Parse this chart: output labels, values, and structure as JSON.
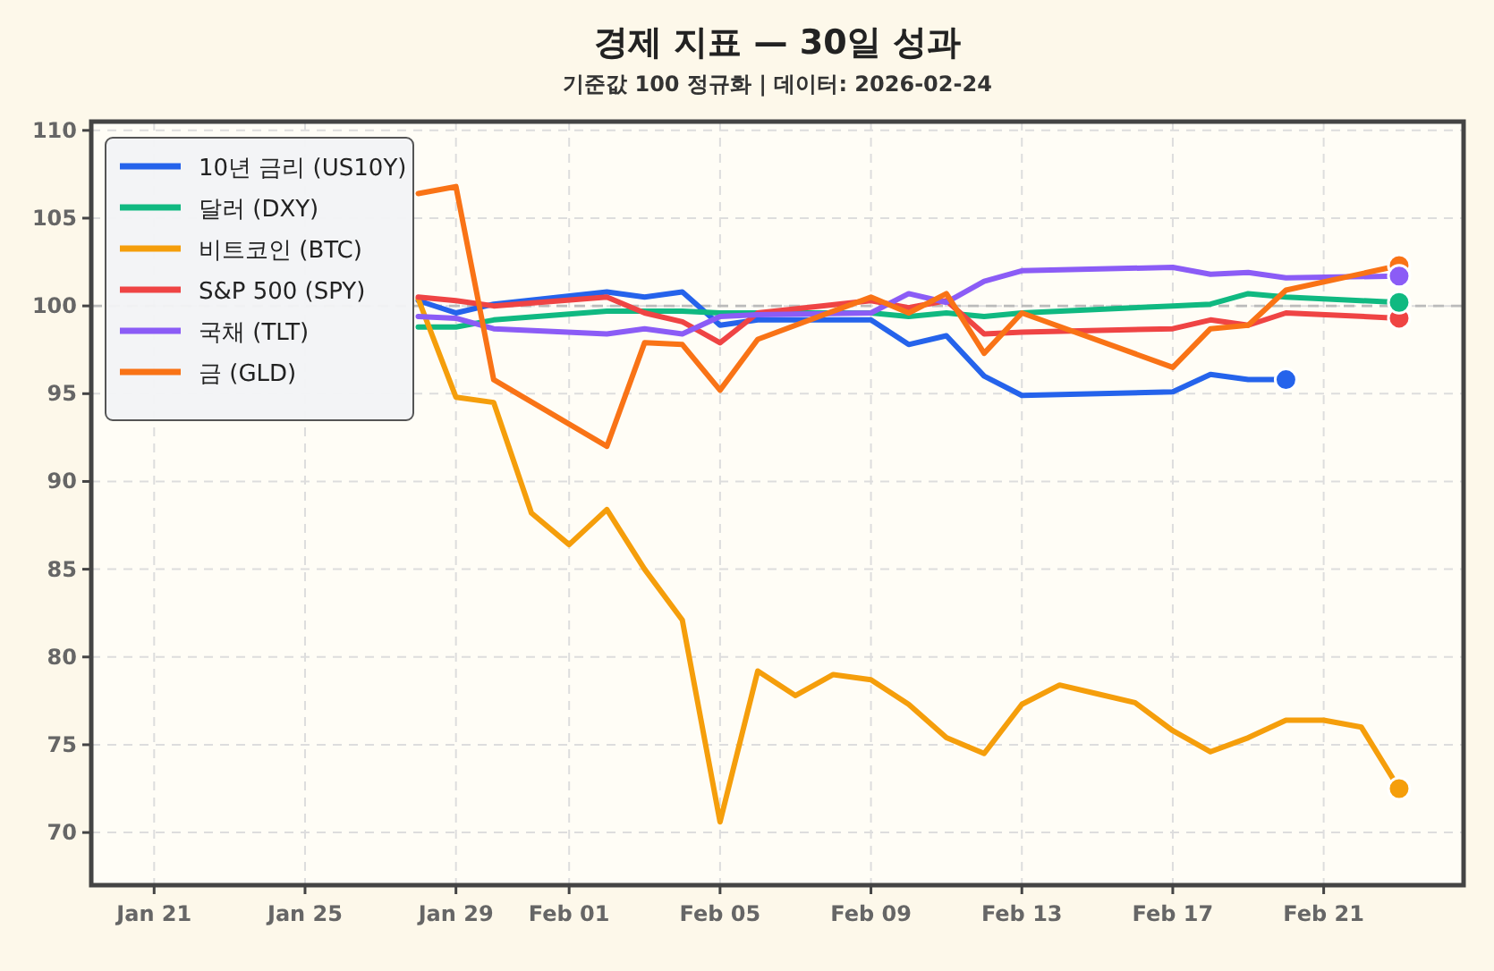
{
  "chart_data": {
    "type": "line",
    "title": "경제 지표 — 30일 성과",
    "subtitle": "기준값 100 정규화 | 데이터: 2026-02-24",
    "xlim": [
      "2026-01-19T08:00",
      "2026-02-24T17:00"
    ],
    "ylim": [
      67,
      110.5
    ],
    "xticks": [
      {
        "value": "2026-01-21",
        "label": "Jan 21"
      },
      {
        "value": "2026-01-25",
        "label": "Jan 25"
      },
      {
        "value": "2026-01-29",
        "label": "Jan 29"
      },
      {
        "value": "2026-02-01",
        "label": "Feb 01"
      },
      {
        "value": "2026-02-05",
        "label": "Feb 05"
      },
      {
        "value": "2026-02-09",
        "label": "Feb 09"
      },
      {
        "value": "2026-02-13",
        "label": "Feb 13"
      },
      {
        "value": "2026-02-17",
        "label": "Feb 17"
      },
      {
        "value": "2026-02-21",
        "label": "Feb 21"
      }
    ],
    "yticks": [
      70,
      75,
      80,
      85,
      90,
      95,
      100,
      105,
      110
    ],
    "grid": true,
    "legend": "top left",
    "line_style": "solid",
    "ref_lines": [
      {
        "axis": "y",
        "value": 100,
        "color": "#bbbbbb",
        "line_style": "dashed"
      }
    ],
    "series": [
      {
        "name": "10년 금리 (US10Y)",
        "color": "#2563eb",
        "x": [
          "2026-01-28",
          "2026-01-29",
          "2026-01-30",
          "2026-02-02",
          "2026-02-03",
          "2026-02-04",
          "2026-02-05",
          "2026-02-06",
          "2026-02-09",
          "2026-02-10",
          "2026-02-11",
          "2026-02-12",
          "2026-02-13",
          "2026-02-17",
          "2026-02-18",
          "2026-02-19",
          "2026-02-20"
        ],
        "values": [
          100.3,
          99.6,
          100.1,
          100.8,
          100.5,
          100.8,
          98.9,
          99.2,
          99.2,
          97.8,
          98.3,
          96.0,
          94.9,
          95.1,
          96.1,
          95.8,
          95.8
        ]
      },
      {
        "name": "달러 (DXY)",
        "color": "#10b981",
        "x": [
          "2026-01-28",
          "2026-01-29",
          "2026-01-30",
          "2026-02-02",
          "2026-02-03",
          "2026-02-04",
          "2026-02-05",
          "2026-02-06",
          "2026-02-09",
          "2026-02-10",
          "2026-02-11",
          "2026-02-12",
          "2026-02-13",
          "2026-02-17",
          "2026-02-18",
          "2026-02-19",
          "2026-02-20",
          "2026-02-23"
        ],
        "values": [
          98.8,
          98.8,
          99.2,
          99.7,
          99.7,
          99.7,
          99.6,
          99.6,
          99.6,
          99.4,
          99.6,
          99.4,
          99.6,
          100.0,
          100.1,
          100.7,
          100.5,
          100.2
        ]
      },
      {
        "name": "비트코인 (BTC)",
        "color": "#f59e0b",
        "x": [
          "2026-01-28",
          "2026-01-29",
          "2026-01-30",
          "2026-01-31",
          "2026-02-01",
          "2026-02-02",
          "2026-02-03",
          "2026-02-04",
          "2026-02-05",
          "2026-02-06",
          "2026-02-07",
          "2026-02-08",
          "2026-02-09",
          "2026-02-10",
          "2026-02-11",
          "2026-02-12",
          "2026-02-13",
          "2026-02-14",
          "2026-02-15",
          "2026-02-16",
          "2026-02-17",
          "2026-02-18",
          "2026-02-19",
          "2026-02-20",
          "2026-02-21",
          "2026-02-22",
          "2026-02-23"
        ],
        "values": [
          100.4,
          94.8,
          94.5,
          88.2,
          86.4,
          88.4,
          85.0,
          82.1,
          70.6,
          79.2,
          77.8,
          79.0,
          78.7,
          77.3,
          75.4,
          74.5,
          77.3,
          78.4,
          77.9,
          77.4,
          75.8,
          74.6,
          75.4,
          76.4,
          76.4,
          76.0,
          72.5
        ]
      },
      {
        "name": "S&P 500 (SPY)",
        "color": "#ef4444",
        "x": [
          "2026-01-28",
          "2026-01-29",
          "2026-01-30",
          "2026-02-02",
          "2026-02-03",
          "2026-02-04",
          "2026-02-05",
          "2026-02-06",
          "2026-02-09",
          "2026-02-10",
          "2026-02-11",
          "2026-02-12",
          "2026-02-13",
          "2026-02-17",
          "2026-02-18",
          "2026-02-19",
          "2026-02-20",
          "2026-02-23"
        ],
        "values": [
          100.5,
          100.3,
          100.0,
          100.5,
          99.6,
          99.1,
          97.9,
          99.6,
          100.3,
          99.9,
          100.3,
          98.4,
          98.5,
          98.7,
          99.2,
          98.9,
          99.6,
          99.3
        ]
      },
      {
        "name": "국채 (TLT)",
        "color": "#8b5cf6",
        "x": [
          "2026-01-28",
          "2026-01-29",
          "2026-01-30",
          "2026-02-02",
          "2026-02-03",
          "2026-02-04",
          "2026-02-05",
          "2026-02-06",
          "2026-02-09",
          "2026-02-10",
          "2026-02-11",
          "2026-02-12",
          "2026-02-13",
          "2026-02-17",
          "2026-02-18",
          "2026-02-19",
          "2026-02-20",
          "2026-02-23"
        ],
        "values": [
          99.4,
          99.3,
          98.7,
          98.4,
          98.7,
          98.4,
          99.4,
          99.5,
          99.6,
          100.7,
          100.2,
          101.4,
          102.0,
          102.2,
          101.8,
          101.9,
          101.6,
          101.7
        ]
      },
      {
        "name": "금 (GLD)",
        "color": "#f97316",
        "x": [
          "2026-01-28",
          "2026-01-29",
          "2026-01-30",
          "2026-02-02",
          "2026-02-03",
          "2026-02-04",
          "2026-02-05",
          "2026-02-06",
          "2026-02-09",
          "2026-02-10",
          "2026-02-11",
          "2026-02-12",
          "2026-02-13",
          "2026-02-17",
          "2026-02-18",
          "2026-02-19",
          "2026-02-20",
          "2026-02-23"
        ],
        "values": [
          106.4,
          106.8,
          95.8,
          92.0,
          97.9,
          97.8,
          95.2,
          98.1,
          100.5,
          99.6,
          100.7,
          97.3,
          99.6,
          96.5,
          98.7,
          98.9,
          100.9,
          102.3
        ]
      }
    ]
  }
}
